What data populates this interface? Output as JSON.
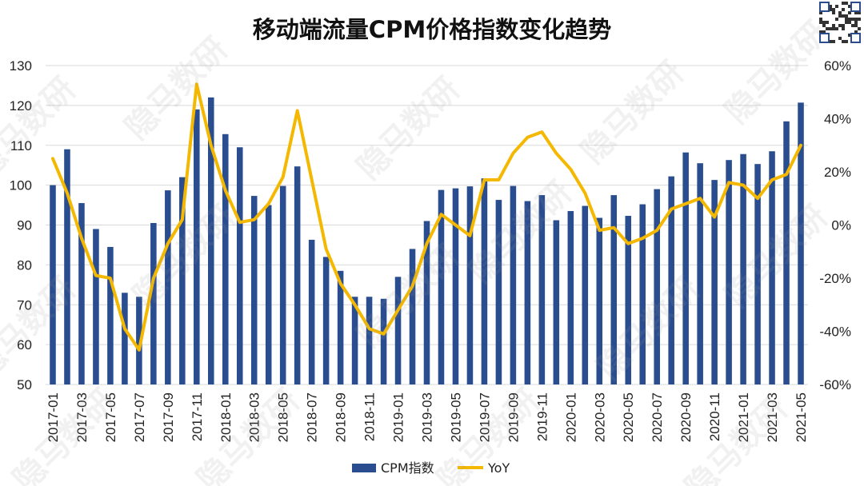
{
  "title": "移动端流量CPM价格指数变化趋势",
  "watermark": "隐马数研",
  "colors": {
    "bar": "#2a4d8f",
    "line": "#f5b800",
    "grid": "#d9d9d9"
  },
  "chart_data": {
    "type": "bar",
    "title": "移动端流量CPM价格指数变化趋势",
    "x": [
      "2017-01",
      "2017-02",
      "2017-03",
      "2017-04",
      "2017-05",
      "2017-06",
      "2017-07",
      "2017-08",
      "2017-09",
      "2017-10",
      "2017-11",
      "2017-12",
      "2018-01",
      "2018-02",
      "2018-03",
      "2018-04",
      "2018-05",
      "2018-06",
      "2018-07",
      "2018-08",
      "2018-09",
      "2018-10",
      "2018-11",
      "2018-12",
      "2019-01",
      "2019-02",
      "2019-03",
      "2019-04",
      "2019-05",
      "2019-06",
      "2019-07",
      "2019-08",
      "2019-09",
      "2019-10",
      "2019-11",
      "2019-12",
      "2020-01",
      "2020-02",
      "2020-03",
      "2020-04",
      "2020-05",
      "2020-06",
      "2020-07",
      "2020-08",
      "2020-09",
      "2020-10",
      "2020-11",
      "2020-12",
      "2021-01",
      "2021-02",
      "2021-03",
      "2021-04",
      "2021-05"
    ],
    "x_tick_labels": [
      "2017-01",
      "2017-03",
      "2017-05",
      "2017-07",
      "2017-09",
      "2017-11",
      "2018-01",
      "2018-03",
      "2018-05",
      "2018-07",
      "2018-09",
      "2018-11",
      "2019-01",
      "2019-03",
      "2019-05",
      "2019-07",
      "2019-09",
      "2019-11",
      "2020-01",
      "2020-03",
      "2020-05",
      "2020-07",
      "2020-09",
      "2020-11",
      "2021-01",
      "2021-03",
      "2021-05"
    ],
    "series": [
      {
        "name": "CPM指数",
        "type": "bar",
        "axis": "left",
        "values": [
          100,
          109,
          95.5,
          89,
          84.5,
          73,
          72,
          90.5,
          98.7,
          102,
          119,
          122,
          112.8,
          109.5,
          97.3,
          95,
          99.8,
          104.7,
          86.3,
          82,
          78.5,
          72,
          72,
          71.5,
          77,
          84,
          91,
          98.8,
          99.2,
          99.7,
          101.7,
          96.3,
          99.8,
          96,
          97.5,
          91.2,
          93.5,
          94.8,
          91.8,
          97.5,
          92.3,
          95.2,
          99,
          102.2,
          108.2,
          105.5,
          101.3,
          106.3,
          107.8,
          105.3,
          108.5,
          116,
          120.7
        ]
      },
      {
        "name": "YoY",
        "type": "line",
        "axis": "right",
        "unit": "%",
        "values": [
          25,
          12,
          -5,
          -19,
          -20,
          -39,
          -47,
          -20,
          -7,
          2,
          53,
          30,
          13,
          1,
          2,
          8,
          18,
          43,
          17,
          -9,
          -22,
          -30,
          -39,
          -41,
          -32,
          -23,
          -7,
          4,
          0,
          -4,
          17,
          17,
          27,
          33,
          35,
          27,
          21,
          12,
          -2,
          -1,
          -7,
          -5,
          -2,
          6,
          8,
          10,
          3,
          16,
          15,
          10,
          17,
          19,
          30
        ]
      }
    ],
    "y_left": {
      "ylim": [
        50,
        130
      ],
      "ticks": [
        "50",
        "60",
        "70",
        "80",
        "90",
        "100",
        "110",
        "120",
        "130"
      ]
    },
    "y_right": {
      "ylim": [
        -60,
        60
      ],
      "ticks": [
        "-60%",
        "-40%",
        "-20%",
        "0%",
        "20%",
        "40%",
        "60%"
      ]
    },
    "grid": true,
    "legend": {
      "position": "bottom",
      "items": [
        "CPM指数",
        "YoY"
      ]
    }
  }
}
